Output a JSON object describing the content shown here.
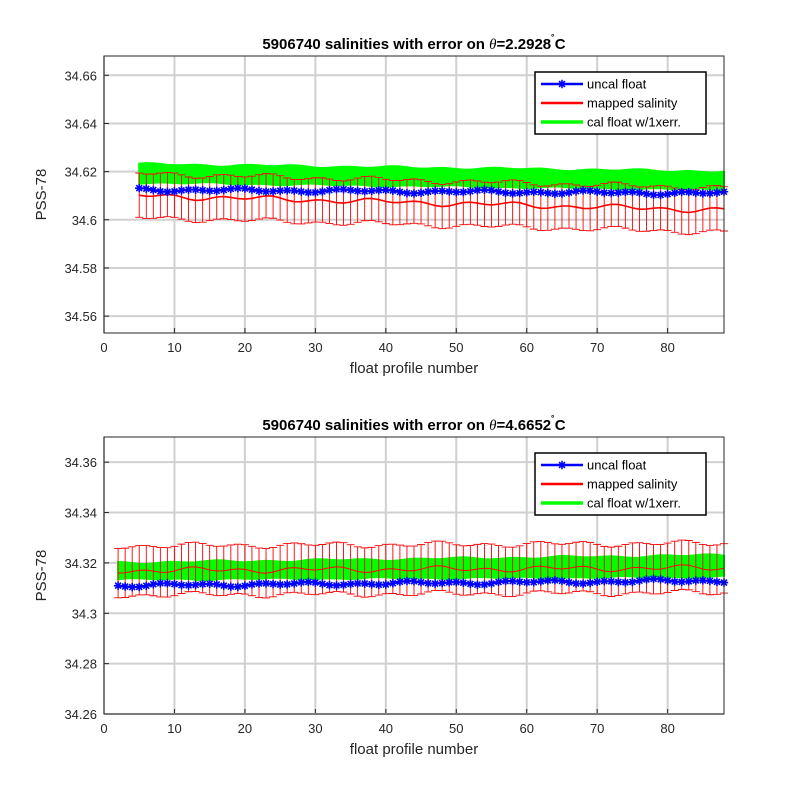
{
  "chart_data": [
    {
      "type": "line",
      "title": "5906740 salinities with error on θ=2.2928˚C",
      "title_parts": {
        "prefix": "5906740 salinities with error on ",
        "theta": "θ",
        "value": "=2.2928",
        "degree": "˚",
        "unit": "C"
      },
      "xlabel": "float profile number",
      "ylabel": "PSS-78",
      "xlim": [
        0,
        88
      ],
      "ylim": [
        34.553,
        34.668
      ],
      "xticks": [
        "0",
        "10",
        "20",
        "30",
        "40",
        "50",
        "60",
        "70",
        "80"
      ],
      "yticks": [
        "34.56",
        "34.58",
        "34.6",
        "34.62",
        "34.64",
        "34.66"
      ],
      "grid": true,
      "legend_position": "top-right",
      "x": [
        5,
        88
      ],
      "series": [
        {
          "name": "uncal float",
          "color": "#0000ff",
          "marker": "star",
          "start": 34.6125,
          "end": 34.611
        },
        {
          "name": "mapped salinity",
          "color": "#ff0000",
          "start": 34.61,
          "end": 34.604,
          "error": 0.0092
        },
        {
          "name": "cal float w/1xerr.",
          "color": "#00ff00",
          "lower": [
            34.6155,
            34.6125
          ],
          "upper": [
            34.623,
            34.62
          ]
        }
      ]
    },
    {
      "type": "line",
      "title": "5906740 salinities with error on θ=4.6652˚C",
      "title_parts": {
        "prefix": "5906740 salinities with error on ",
        "theta": "θ",
        "value": "=4.6652",
        "degree": "˚",
        "unit": "C"
      },
      "xlabel": "float profile number",
      "ylabel": "PSS-78",
      "xlim": [
        0,
        88
      ],
      "ylim": [
        34.26,
        34.37
      ],
      "xticks": [
        "0",
        "10",
        "20",
        "30",
        "40",
        "50",
        "60",
        "70",
        "80"
      ],
      "yticks": [
        "34.26",
        "34.28",
        "34.3",
        "34.32",
        "34.34",
        "34.36"
      ],
      "grid": true,
      "legend_position": "top-right",
      "x": [
        2,
        88
      ],
      "series": [
        {
          "name": "uncal float",
          "color": "#0000ff",
          "marker": "star",
          "start": 34.311,
          "end": 34.313
        },
        {
          "name": "mapped salinity",
          "color": "#ff0000",
          "start": 34.317,
          "end": 34.318,
          "error": 0.0098
        },
        {
          "name": "cal float w/1xerr.",
          "color": "#00ff00",
          "lower": [
            34.3135,
            34.3145
          ],
          "upper": [
            34.32,
            34.323
          ]
        }
      ]
    }
  ]
}
